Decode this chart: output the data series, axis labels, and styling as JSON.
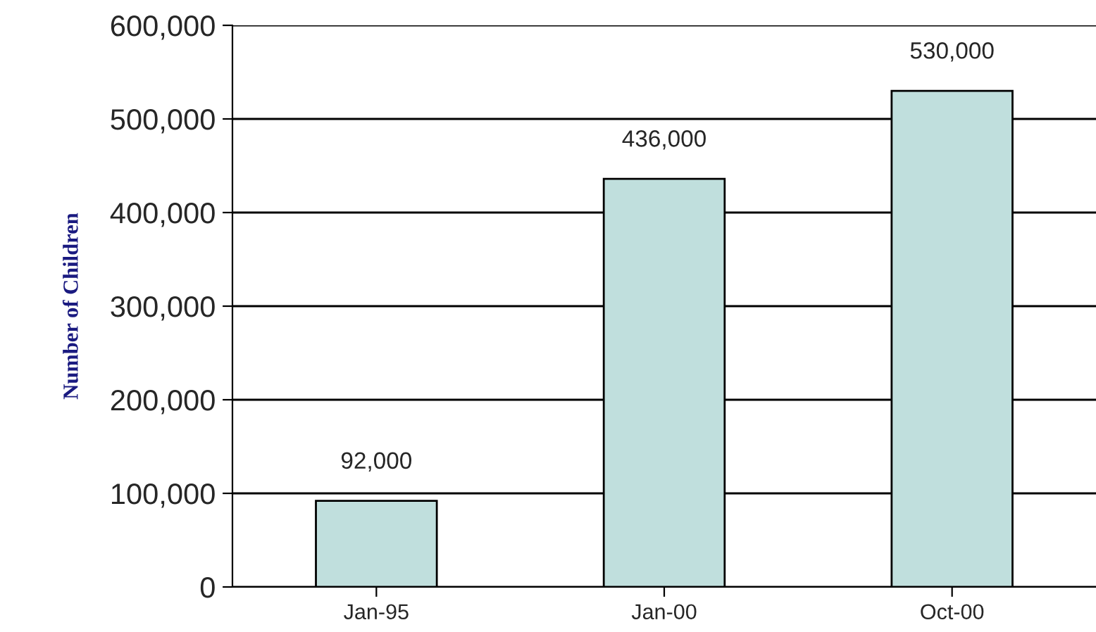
{
  "chart_data": {
    "type": "bar",
    "ylabel": "Number of Children",
    "categories": [
      "Jan-95",
      "Jan-00",
      "Oct-00"
    ],
    "values": [
      92000,
      436000,
      530000
    ],
    "color": "#c0dfdd",
    "value_labels": [
      "92,000",
      "436,000",
      "530,000"
    ],
    "ylim": [
      0,
      600000
    ],
    "yticks": [
      {
        "value": 0,
        "label": "0"
      },
      {
        "value": 100000,
        "label": "100,000"
      },
      {
        "value": 200000,
        "label": "200,000"
      },
      {
        "value": 300000,
        "label": "300,000"
      },
      {
        "value": 400000,
        "label": "400,000"
      },
      {
        "value": 500000,
        "label": "500,000"
      },
      {
        "value": 600000,
        "label": "600,000"
      }
    ],
    "grid": "y"
  }
}
